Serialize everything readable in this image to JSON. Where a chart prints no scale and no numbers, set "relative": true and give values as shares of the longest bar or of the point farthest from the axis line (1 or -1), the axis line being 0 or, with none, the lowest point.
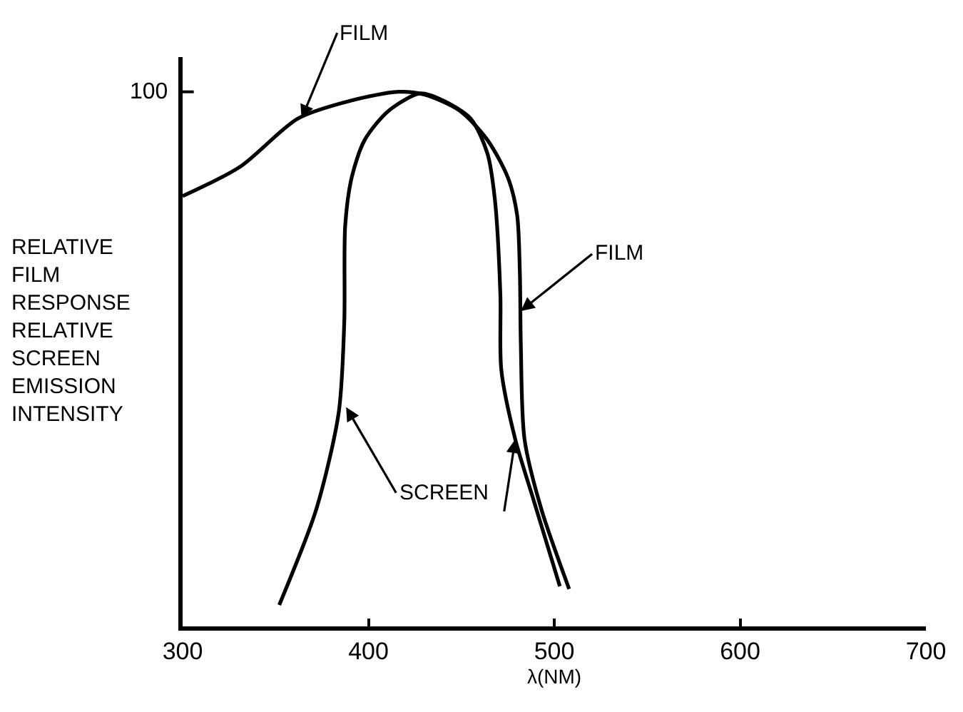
{
  "chart_data": {
    "type": "line",
    "relative": true,
    "xlabel": "λ(NM)",
    "ylabel": "RELATIVE\nFILM\nRESPONSE\nRELATIVE\nSCREEN\nEMISSION\nINTENSITY",
    "xlim": [
      300,
      700
    ],
    "xticks": [
      300,
      400,
      500,
      600,
      700
    ],
    "legend": false,
    "marker": "none",
    "line_style": "solid",
    "series": [
      {
        "color": "#000000",
        "x": [
          300,
          331,
          362,
          391,
          416,
          430,
          449,
          464,
          475,
          480,
          481.5,
          482,
          484,
          493,
          508
        ],
        "values": [
          0.805,
          0.86,
          0.95,
          0.984,
          1,
          0.995,
          0.965,
          0.91,
          0.84,
          0.77,
          0.66,
          0.53,
          0.35,
          0.22,
          0.07
        ]
      },
      {
        "color": "#000000",
        "x": [
          352,
          372,
          384,
          387,
          387.5,
          391,
          398,
          411,
          428,
          440,
          455,
          464,
          468,
          471,
          471.5,
          479,
          489,
          503
        ],
        "values": [
          0.04,
          0.22,
          0.4,
          0.57,
          0.75,
          0.84,
          0.91,
          0.965,
          0.997,
          0.984,
          0.95,
          0.885,
          0.8,
          0.62,
          0.48,
          0.35,
          0.235,
          0.075
        ]
      }
    ],
    "annotations": [
      "100",
      {
        "text": "FILM",
        "x": 364,
        "y": 0.95
      },
      {
        "text": "FILM",
        "x": 482,
        "y": 0.59
      },
      {
        "text": "SCREEN",
        "x": 388,
        "y": 0.41
      }
    ]
  }
}
